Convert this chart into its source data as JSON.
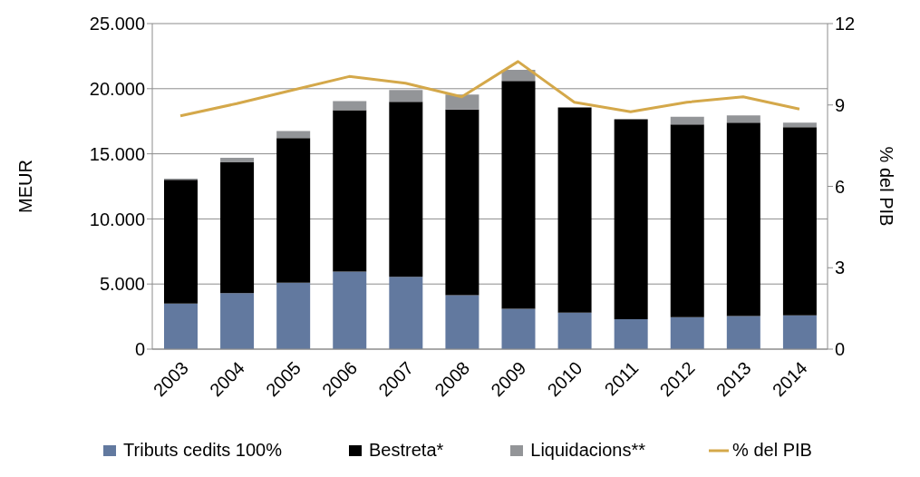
{
  "chart_data": {
    "type": "bar",
    "stacked": true,
    "ylabel": "MEUR",
    "y2label": "% del PIB",
    "categories": [
      "2003",
      "2004",
      "2005",
      "2006",
      "2007",
      "2008",
      "2009",
      "2010",
      "2011",
      "2012",
      "2013",
      "2014"
    ],
    "series": [
      {
        "name": "Tributs cedits 100%",
        "color": "#62799f",
        "values": [
          3500,
          4300,
          5100,
          5950,
          5550,
          4150,
          3100,
          2800,
          2300,
          2450,
          2550,
          2600
        ]
      },
      {
        "name": "Bestreta*",
        "color": "#000000",
        "values": [
          9500,
          10050,
          11100,
          12400,
          13450,
          14250,
          17500,
          15750,
          15350,
          14800,
          14850,
          14450
        ]
      },
      {
        "name": "Liquidacions**",
        "color": "#939598",
        "values": [
          100,
          350,
          550,
          700,
          900,
          1150,
          850,
          null,
          null,
          600,
          550,
          350
        ]
      },
      {
        "name": "% del PIB",
        "type": "line",
        "axis": "y2",
        "color": "#d4a84a",
        "values": [
          8.6,
          9.05,
          9.55,
          10.05,
          9.8,
          9.3,
          10.6,
          9.1,
          8.75,
          9.1,
          9.3,
          8.85
        ]
      }
    ],
    "ylim": [
      0,
      25000
    ],
    "yticks": [
      0,
      {
        "value": 5000,
        "label": "5.000"
      },
      {
        "value": 10000,
        "label": "10.000"
      },
      {
        "value": 15000,
        "label": "15.000"
      },
      {
        "value": 20000,
        "label": "20.000"
      },
      {
        "value": 25000,
        "label": "25.000"
      }
    ],
    "y2lim": [
      0,
      12
    ],
    "y2ticks": [
      0,
      3,
      6,
      9,
      12
    ],
    "grid": "y",
    "legend": "bottom",
    "marker": "none"
  }
}
